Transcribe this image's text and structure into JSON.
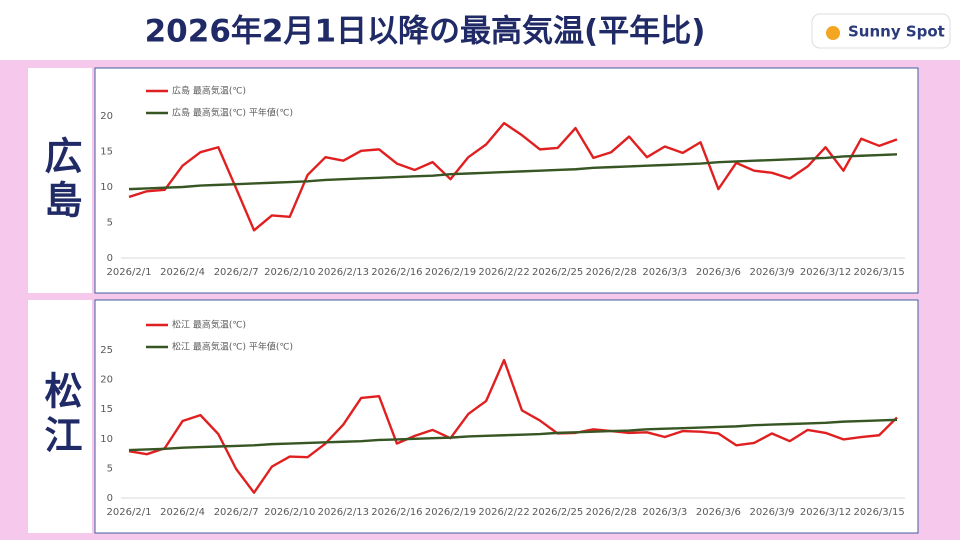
{
  "header": {
    "title": "2026年2月1日以降の最高気温(平年比)",
    "logo": "Sunny Spot"
  },
  "chart_data": [
    {
      "type": "line",
      "panel_label": "広島",
      "categories": [
        "2026/2/1",
        null,
        null,
        "2026/2/4",
        null,
        null,
        "2026/2/7",
        null,
        null,
        "2026/2/10",
        null,
        null,
        "2026/2/13",
        null,
        null,
        "2026/2/16",
        null,
        null,
        "2026/2/19",
        null,
        null,
        "2026/2/22",
        null,
        null,
        "2026/2/25",
        null,
        null,
        "2026/2/28",
        null,
        null,
        "2026/3/3",
        null,
        null,
        "2026/3/6",
        null,
        null,
        "2026/3/9",
        null,
        null,
        "2026/3/12",
        null,
        null,
        "2026/3/15",
        null
      ],
      "series": [
        {
          "name": "広島 最高気温(℃)",
          "color": "#e02020",
          "values": [
            8.6,
            9.4,
            9.6,
            13.0,
            14.9,
            15.6,
            9.8,
            3.9,
            6.0,
            5.8,
            11.7,
            14.2,
            13.7,
            15.1,
            15.3,
            13.3,
            12.4,
            13.5,
            11.1,
            14.2,
            16.0,
            19.0,
            17.3,
            15.3,
            15.5,
            18.3,
            14.1,
            14.9,
            17.1,
            14.2,
            15.7,
            14.8,
            16.3,
            9.7,
            13.4,
            12.3,
            12.0,
            11.2,
            12.9,
            15.6,
            12.3,
            16.8,
            15.8,
            16.7
          ]
        },
        {
          "name": "広島 最高気温(℃) 平年値(℃)",
          "color": "#375623",
          "values": [
            9.7,
            9.8,
            9.9,
            10.0,
            10.2,
            10.3,
            10.4,
            10.5,
            10.6,
            10.7,
            10.8,
            11.0,
            11.1,
            11.2,
            11.3,
            11.4,
            11.5,
            11.6,
            11.8,
            11.9,
            12.0,
            12.1,
            12.2,
            12.3,
            12.4,
            12.5,
            12.7,
            12.8,
            12.9,
            13.0,
            13.1,
            13.2,
            13.3,
            13.5,
            13.6,
            13.7,
            13.8,
            13.9,
            14.0,
            14.1,
            14.3,
            14.4,
            14.5,
            14.6
          ]
        }
      ],
      "ylim": [
        0,
        20
      ],
      "yticks": [
        0,
        5,
        10,
        15,
        20
      ],
      "grid": false
    },
    {
      "type": "line",
      "panel_label": "松江",
      "categories": [
        "2026/2/1",
        null,
        null,
        "2026/2/4",
        null,
        null,
        "2026/2/7",
        null,
        null,
        "2026/2/10",
        null,
        null,
        "2026/2/13",
        null,
        null,
        "2026/2/16",
        null,
        null,
        "2026/2/19",
        null,
        null,
        "2026/2/22",
        null,
        null,
        "2026/2/25",
        null,
        null,
        "2026/2/28",
        null,
        null,
        "2026/3/3",
        null,
        null,
        "2026/3/6",
        null,
        null,
        "2026/3/9",
        null,
        null,
        "2026/3/12",
        null,
        null,
        "2026/3/15",
        null
      ],
      "series": [
        {
          "name": "松江 最高気温(℃)",
          "color": "#e02020",
          "values": [
            7.9,
            7.4,
            8.4,
            13.0,
            14.0,
            10.8,
            4.9,
            0.9,
            5.3,
            7.0,
            6.9,
            9.2,
            12.4,
            16.9,
            17.2,
            9.2,
            10.5,
            11.5,
            10.1,
            14.2,
            16.4,
            23.3,
            14.8,
            13.1,
            10.9,
            11.0,
            11.6,
            11.3,
            11.0,
            11.1,
            10.3,
            11.3,
            11.2,
            10.9,
            8.9,
            9.3,
            10.9,
            9.6,
            11.5,
            11.0,
            9.9,
            10.3,
            10.6,
            13.6
          ]
        },
        {
          "name": "松江 最高気温(℃) 平年値(℃)",
          "color": "#375623",
          "values": [
            8.1,
            8.2,
            8.3,
            8.5,
            8.6,
            8.7,
            8.8,
            8.9,
            9.1,
            9.2,
            9.3,
            9.4,
            9.5,
            9.6,
            9.8,
            9.9,
            10.0,
            10.1,
            10.2,
            10.4,
            10.5,
            10.6,
            10.7,
            10.8,
            11.0,
            11.1,
            11.2,
            11.3,
            11.4,
            11.6,
            11.7,
            11.8,
            11.9,
            12.0,
            12.1,
            12.3,
            12.4,
            12.5,
            12.6,
            12.7,
            12.9,
            13.0,
            13.1,
            13.2
          ]
        }
      ],
      "ylim": [
        0,
        25
      ],
      "yticks": [
        0,
        5,
        10,
        15,
        20,
        25
      ],
      "grid": false
    }
  ]
}
